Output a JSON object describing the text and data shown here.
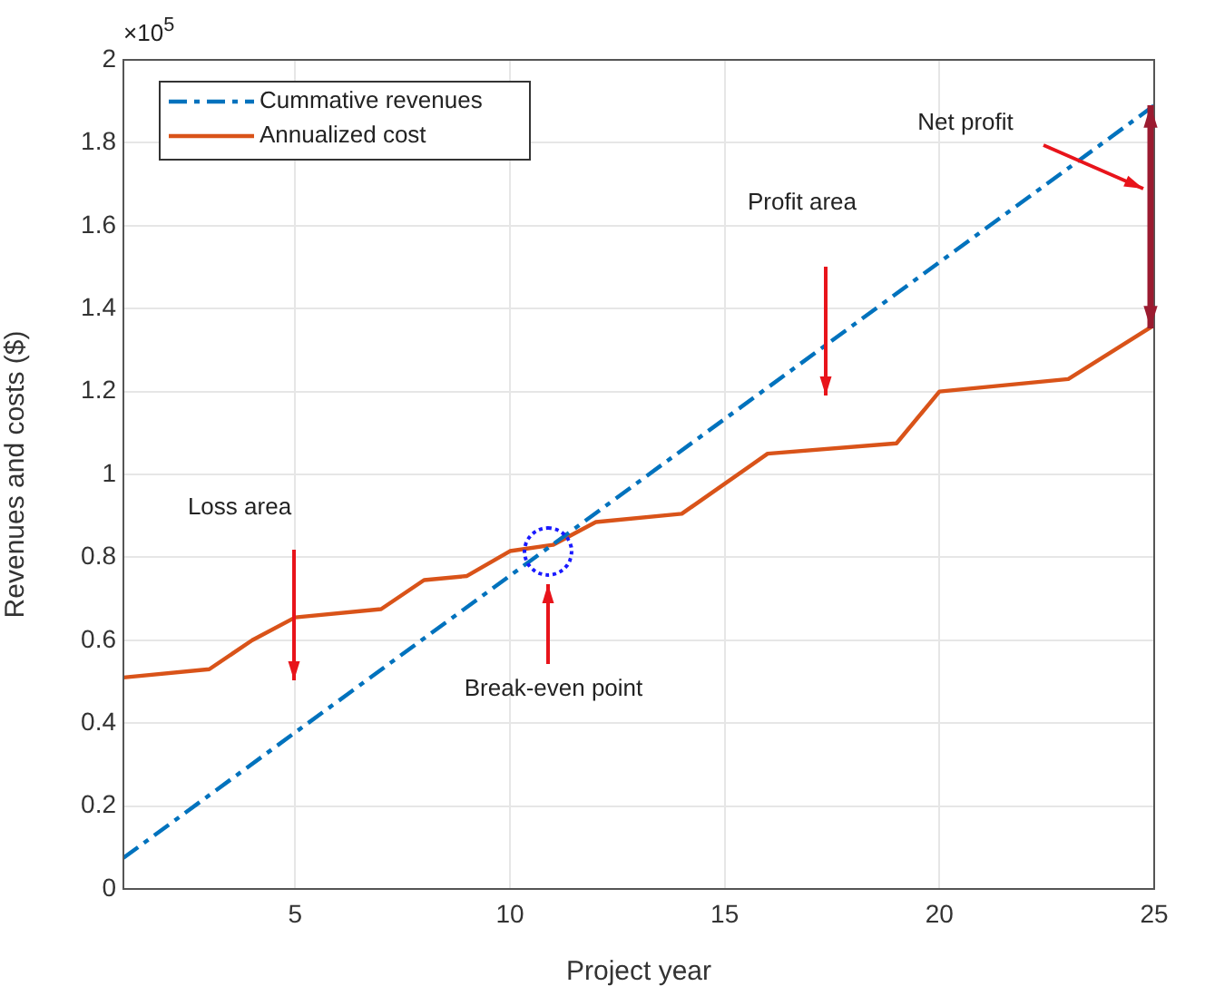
{
  "chart_data": {
    "type": "line",
    "xlabel": "Project year",
    "ylabel": "Revenues and costs ($)",
    "xlim": [
      1,
      25
    ],
    "xticks": [
      5,
      10,
      15,
      20,
      25
    ],
    "ylim": [
      0,
      2
    ],
    "yticks": [
      0,
      0.2,
      0.4,
      0.6,
      0.8,
      1,
      1.2,
      1.4,
      1.6,
      1.8,
      2
    ],
    "grid": true,
    "legend": "top left",
    "marker": "none",
    "series": [
      {
        "name": "Cummative revenues",
        "color": "#0072bd",
        "line_style": "dashed",
        "x": [
          1,
          25
        ],
        "values": [
          0.075,
          1.89
        ]
      },
      {
        "name": "Annualized cost",
        "color": "#d95319",
        "line_style": "solid",
        "x": [
          1,
          3,
          4,
          5,
          7,
          8,
          9,
          10,
          11,
          12,
          14,
          16,
          19,
          20,
          23,
          25
        ],
        "values": [
          0.51,
          0.53,
          0.6,
          0.655,
          0.675,
          0.745,
          0.755,
          0.815,
          0.83,
          0.885,
          0.905,
          1.05,
          1.075,
          1.2,
          1.23,
          1.36
        ]
      }
    ],
    "annotations": [
      "×10$^{5}$",
      "Loss area",
      "Break-even point",
      "Profit area",
      "Net profit"
    ]
  }
}
